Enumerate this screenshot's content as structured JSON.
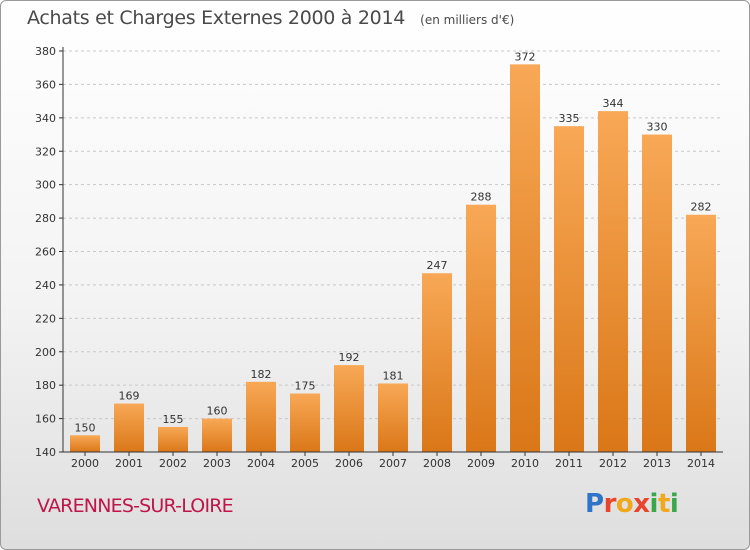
{
  "header": {
    "title": "Achats et Charges Externes 2000 à 2014",
    "unit": "(en milliers d'€)"
  },
  "footer": {
    "place": "VARENNES-SUR-LOIRE",
    "brand": "Proxiti"
  },
  "colors": {
    "bar_light": "#f8a856",
    "bar_dark": "#da7718",
    "axis": "#333333",
    "grid": "#c8c8c8",
    "place_text": "#c0154b"
  },
  "chart_data": {
    "type": "bar",
    "title": "Achats et Charges Externes 2000 à 2014",
    "subtitle": "(en milliers d'€)",
    "categories": [
      "2000",
      "2001",
      "2002",
      "2003",
      "2004",
      "2005",
      "2006",
      "2007",
      "2008",
      "2009",
      "2010",
      "2011",
      "2012",
      "2013",
      "2014"
    ],
    "values": [
      150,
      169,
      155,
      160,
      182,
      175,
      192,
      181,
      247,
      288,
      372,
      335,
      344,
      330,
      282
    ],
    "ylim": [
      140,
      380
    ],
    "yticks": [
      140,
      160,
      180,
      200,
      220,
      240,
      260,
      280,
      300,
      320,
      340,
      360,
      380
    ],
    "grid": "horizontal dashed",
    "data_labels": true
  }
}
